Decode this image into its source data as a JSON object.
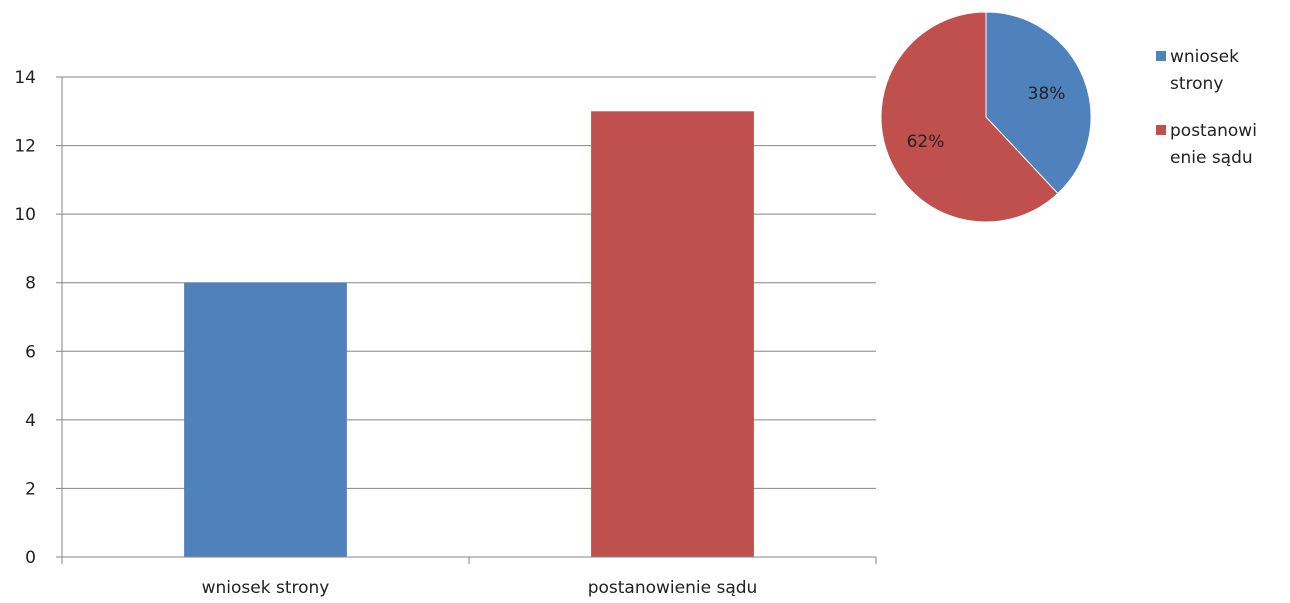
{
  "chart_data": [
    {
      "type": "bar",
      "title": "",
      "xlabel": "",
      "ylabel": "",
      "categories": [
        "wniosek strony",
        "postanowienie sądu"
      ],
      "values": [
        8,
        13
      ],
      "colors": [
        "#4f81bd",
        "#c0504d"
      ],
      "ylim": [
        0,
        14
      ],
      "yticks": [
        0,
        2,
        4,
        6,
        8,
        10,
        12,
        14
      ],
      "ytick_labels": [
        "0",
        "2",
        "4",
        "6",
        "8",
        "10",
        "12",
        "14"
      ],
      "grid": true
    },
    {
      "type": "pie",
      "title": "",
      "slices": [
        {
          "label": "wniosek strony",
          "value": 38,
          "display": "38%",
          "color": "#4f81bd"
        },
        {
          "label": "postanowienie sądu",
          "value": 62,
          "display": "62%",
          "color": "#c0504d"
        }
      ],
      "legend": {
        "placement": "right",
        "entries": [
          {
            "lines": [
              "wniosek",
              "strony"
            ],
            "color": "#4f81bd"
          },
          {
            "lines": [
              "postanowi",
              "enie sądu"
            ],
            "color": "#c0504d"
          }
        ]
      }
    }
  ]
}
